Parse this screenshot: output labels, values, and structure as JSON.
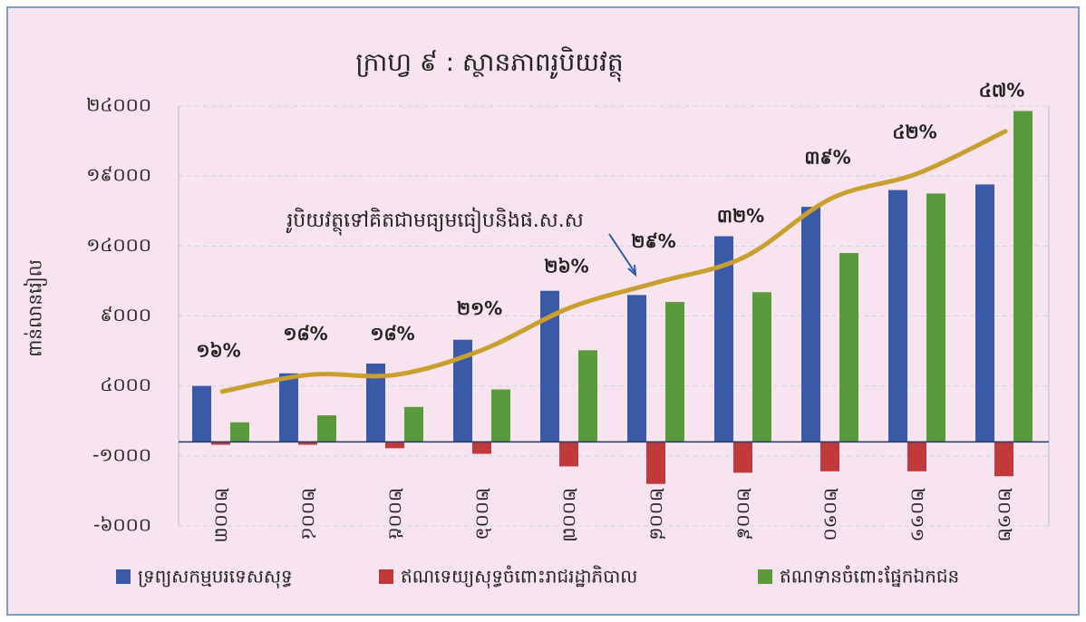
{
  "chart_data": {
    "type": "bar",
    "title": "ក្រាហ្វ ៩ : ស្ថានភាពរូបិយវត្ថុ",
    "y_label": "ពាន់លានរៀល",
    "annotation": "រូបិយវត្ថុទៅគិតជាមធ្យមធៀបនិងផ.ស.ស",
    "categories": [
      "២០០៣",
      "២០០៤",
      "២០០៥",
      "២០០៦",
      "២០០៧",
      "២០០៨",
      "២០០៩",
      "២០១០",
      "២០១១",
      "២០១២"
    ],
    "ylim": [
      -6000,
      24000
    ],
    "yticks": [
      {
        "value": 24000,
        "label": "២៤០០០"
      },
      {
        "value": 19000,
        "label": "១៩០០០"
      },
      {
        "value": 14000,
        "label": "១៤០០០"
      },
      {
        "value": 9000,
        "label": "៩០០០"
      },
      {
        "value": 4000,
        "label": "៤០០០"
      },
      {
        "value": -1000,
        "label": "-១០០០"
      },
      {
        "value": -6000,
        "label": "-៦០០០"
      }
    ],
    "y2lim": [
      0,
      50
    ],
    "grid": true,
    "legend": "bottom",
    "series": [
      {
        "name": "ទ្រព្យសកម្មបរទេសសុទ្ធ",
        "color": "#3a5aa8",
        "values": [
          4000,
          4900,
          5600,
          7300,
          10800,
          10500,
          14700,
          16800,
          18000,
          18400
        ]
      },
      {
        "name": "ឥណទេយ្យសុទ្ធចំពោះរាជរដ្ឋាភិបាល",
        "color": "#c0393b",
        "values": [
          -200,
          -200,
          -450,
          -850,
          -1750,
          -3000,
          -2200,
          -2100,
          -2100,
          -2450
        ]
      },
      {
        "name": "ឥណទានចំពោះផ្នែកឯកជន",
        "color": "#5b9a3c",
        "values": [
          1400,
          1900,
          2500,
          3750,
          6550,
          10000,
          10700,
          13500,
          17750,
          23650
        ]
      },
      {
        "type": "line",
        "axis": "y2",
        "color": "#c9a030",
        "values": [
          16,
          18,
          18,
          21,
          26,
          29,
          32,
          39,
          42,
          47
        ],
        "value_labels": [
          "១៦%",
          "១៨%",
          "១៨%",
          "២១%",
          "២៦%",
          "២៩%",
          "៣២%",
          "៣៩%",
          "៤២%",
          "៤៧%"
        ]
      }
    ]
  }
}
